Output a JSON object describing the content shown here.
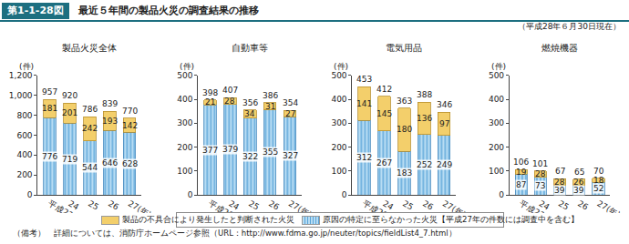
{
  "header": {
    "figure_no": "第1-1-28図",
    "title": "最近５年間の製品火災の調査結果の推移"
  },
  "as_of": "（平成28年６月30日現在）",
  "note": "（備考）　詳細については、消防庁ホームページ参照（URL：http://www.fdma.go.jp/neuter/topics/fieldList4_7.html）",
  "chart_data": [
    {
      "type": "bar",
      "title": "製品火災全体",
      "y_label": "(件)",
      "categories": [
        "平成23",
        "24",
        "25",
        "26",
        "27(年)"
      ],
      "series": [
        {
          "name": "原因の特定に至らなかった火災【平成27年の件数には調査中を含む】",
          "color": "#b7dcf3",
          "values": [
            776,
            719,
            544,
            646,
            628
          ]
        },
        {
          "name": "製品の不具合により発生したと判断された火災",
          "color": "#f3cf6b",
          "values": [
            181,
            201,
            242,
            193,
            142
          ]
        }
      ],
      "totals": [
        957,
        920,
        786,
        839,
        770
      ],
      "ylim": [
        0,
        1200
      ],
      "yticks": [
        0,
        200,
        400,
        600,
        800,
        {
          "value": 1000,
          "label": "1,000"
        },
        {
          "value": 1200,
          "label": "1,200"
        }
      ],
      "stacked": true,
      "data_labels": true,
      "grid": false
    },
    {
      "type": "bar",
      "title": "自動車等",
      "y_label": "(件)",
      "categories": [
        "平成23",
        "24",
        "25",
        "26",
        "27(年)"
      ],
      "series": [
        {
          "name": "原因の特定に至らなかった火災【平成27年の件数には調査中を含む】",
          "color": "#b7dcf3",
          "values": [
            377,
            379,
            322,
            355,
            327
          ]
        },
        {
          "name": "製品の不具合により発生したと判断された火災",
          "color": "#f3cf6b",
          "values": [
            21,
            28,
            34,
            31,
            27
          ]
        }
      ],
      "totals": [
        398,
        407,
        356,
        386,
        354
      ],
      "ylim": [
        0,
        500
      ],
      "yticks": [
        0,
        100,
        200,
        300,
        400,
        500
      ],
      "stacked": true,
      "data_labels": true,
      "grid": false
    },
    {
      "type": "bar",
      "title": "電気用品",
      "y_label": "(件)",
      "categories": [
        "平成23",
        "24",
        "25",
        "26",
        "27(年)"
      ],
      "series": [
        {
          "name": "原因の特定に至らなかった火災【平成27年の件数には調査中を含む】",
          "color": "#b7dcf3",
          "values": [
            312,
            267,
            183,
            252,
            249
          ]
        },
        {
          "name": "製品の不具合により発生したと判断された火災",
          "color": "#f3cf6b",
          "values": [
            141,
            145,
            180,
            136,
            97
          ]
        }
      ],
      "totals": [
        453,
        412,
        363,
        388,
        346
      ],
      "ylim": [
        0,
        500
      ],
      "yticks": [
        0,
        100,
        200,
        300,
        400,
        500
      ],
      "stacked": true,
      "data_labels": true,
      "grid": false
    },
    {
      "type": "bar",
      "title": "燃焼機器",
      "y_label": "(件)",
      "categories": [
        "平成23",
        "24",
        "25",
        "26",
        "27(年)"
      ],
      "series": [
        {
          "name": "原因の特定に至らなかった火災【平成27年の件数には調査中を含む】",
          "color": "#b7dcf3",
          "values": [
            87,
            73,
            39,
            39,
            52
          ]
        },
        {
          "name": "製品の不具合により発生したと判断された火災",
          "color": "#f3cf6b",
          "values": [
            19,
            28,
            28,
            26,
            18
          ]
        }
      ],
      "totals": [
        106,
        101,
        67,
        65,
        70
      ],
      "ylim": [
        0,
        500
      ],
      "yticks": [
        0,
        100,
        200,
        300,
        400,
        500
      ],
      "stacked": true,
      "data_labels": true,
      "grid": false
    }
  ]
}
